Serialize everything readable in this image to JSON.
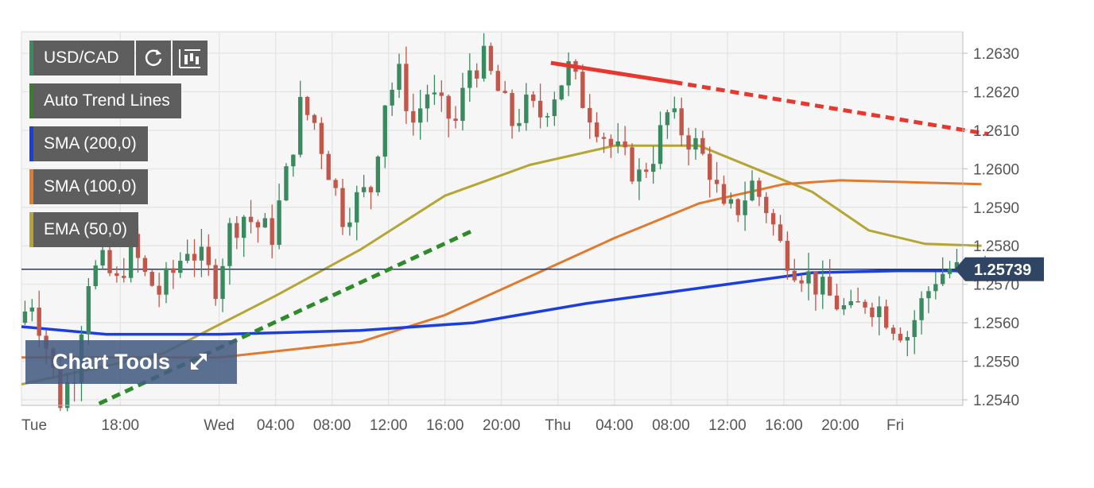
{
  "legend": {
    "symbol": "USD/CAD",
    "items": [
      {
        "label": "Auto Trend Lines",
        "color": "#3a7d2c"
      },
      {
        "label": "SMA (200,0)",
        "color": "#1a3ee0"
      },
      {
        "label": "SMA (100,0)",
        "color": "#e07a2e"
      },
      {
        "label": "EMA (50,0)",
        "color": "#b5a535"
      }
    ],
    "symbol_color": "#3a8a5f"
  },
  "tools": {
    "refresh_icon": "refresh-icon",
    "candles_icon": "candlestick-icon",
    "chart_tools_label": "Chart Tools",
    "expand_icon": "expand-icon"
  },
  "chart_data": {
    "type": "candlestick",
    "x_labels": [
      "Tue",
      "18:00",
      "Wed",
      "04:00",
      "08:00",
      "12:00",
      "16:00",
      "20:00",
      "Thu",
      "04:00",
      "08:00",
      "12:00",
      "16:00",
      "20:00",
      "Fri"
    ],
    "y_ticks": [
      "1.2540",
      "1.2550",
      "1.2560",
      "1.2570",
      "1.2580",
      "1.2590",
      "1.2600",
      "1.2610",
      "1.2620",
      "1.2630"
    ],
    "ylim": [
      1.2538,
      1.2636
    ],
    "x_range_hours": [
      0,
      80
    ],
    "x_label_hours": [
      0,
      7,
      14,
      18,
      22,
      26,
      30,
      34,
      38,
      42,
      46,
      50,
      54,
      58,
      62
    ],
    "last_price": "1.25739",
    "last_price_value": 1.25739,
    "colors": {
      "up": "#3a8a5f",
      "down": "#c0574a",
      "sma200": "#1a3ee0",
      "sma100": "#e07a2e",
      "ema50": "#b5a535",
      "trend_up": "#2f8a2a",
      "trend_down": "#e8372e",
      "price_line": "#2b3b5a",
      "price_flag": "#2f4563"
    },
    "anchors": [
      [
        0,
        1.256
      ],
      [
        1,
        1.2566
      ],
      [
        2,
        1.2554
      ],
      [
        3,
        1.254
      ],
      [
        4,
        1.2548
      ],
      [
        5,
        1.2572
      ],
      [
        6,
        1.2575
      ],
      [
        7,
        1.257
      ],
      [
        8,
        1.258
      ],
      [
        9,
        1.2572
      ],
      [
        10,
        1.2568
      ],
      [
        11,
        1.2573
      ],
      [
        12,
        1.258
      ],
      [
        13,
        1.2576
      ],
      [
        14,
        1.257
      ],
      [
        15,
        1.2584
      ],
      [
        16,
        1.2588
      ],
      [
        17,
        1.2585
      ],
      [
        18,
        1.2583
      ],
      [
        19,
        1.2598
      ],
      [
        20,
        1.2616
      ],
      [
        21,
        1.2612
      ],
      [
        22,
        1.26
      ],
      [
        23,
        1.2588
      ],
      [
        24,
        1.2592
      ],
      [
        25,
        1.2595
      ],
      [
        26,
        1.2618
      ],
      [
        27,
        1.2624
      ],
      [
        28,
        1.2612
      ],
      [
        29,
        1.262
      ],
      [
        30,
        1.2615
      ],
      [
        31,
        1.2612
      ],
      [
        32,
        1.2626
      ],
      [
        33,
        1.2628
      ],
      [
        34,
        1.262
      ],
      [
        35,
        1.2612
      ],
      [
        36,
        1.2616
      ],
      [
        37,
        1.2614
      ],
      [
        38,
        1.262
      ],
      [
        39,
        1.2626
      ],
      [
        40,
        1.2618
      ],
      [
        41,
        1.2612
      ],
      [
        42,
        1.2606
      ],
      [
        43,
        1.2602
      ],
      [
        44,
        1.2598
      ],
      [
        45,
        1.2604
      ],
      [
        46,
        1.2614
      ],
      [
        47,
        1.261
      ],
      [
        48,
        1.2606
      ],
      [
        49,
        1.26
      ],
      [
        50,
        1.2588
      ],
      [
        51,
        1.259
      ],
      [
        52,
        1.2596
      ],
      [
        53,
        1.259
      ],
      [
        54,
        1.258
      ],
      [
        55,
        1.2575
      ],
      [
        56,
        1.2572
      ],
      [
        57,
        1.2568
      ],
      [
        58,
        1.2565
      ],
      [
        59,
        1.2562
      ],
      [
        60,
        1.2566
      ],
      [
        61,
        1.2564
      ],
      [
        62,
        1.256
      ],
      [
        63,
        1.2557
      ],
      [
        64,
        1.2565
      ],
      [
        65,
        1.2572
      ],
      [
        66,
        1.2574
      ],
      [
        67,
        1.2573
      ],
      [
        68,
        1.2574
      ]
    ],
    "candle_step_hours": 0.5,
    "noise_seed": 7,
    "sma200": [
      [
        0,
        1.2559
      ],
      [
        6,
        1.2557
      ],
      [
        14,
        1.2557
      ],
      [
        24,
        1.2558
      ],
      [
        32,
        1.256
      ],
      [
        40,
        1.2565
      ],
      [
        48,
        1.2569
      ],
      [
        56,
        1.2573
      ],
      [
        62,
        1.25735
      ],
      [
        68,
        1.25735
      ]
    ],
    "sma100": [
      [
        0,
        1.2551
      ],
      [
        14,
        1.2551
      ],
      [
        24,
        1.2555
      ],
      [
        30,
        1.2562
      ],
      [
        36,
        1.2572
      ],
      [
        42,
        1.2582
      ],
      [
        48,
        1.2591
      ],
      [
        54,
        1.2596
      ],
      [
        58,
        1.2597
      ],
      [
        68,
        1.2596
      ]
    ],
    "ema50": [
      [
        0,
        1.2544
      ],
      [
        10,
        1.2552
      ],
      [
        18,
        1.2567
      ],
      [
        24,
        1.2579
      ],
      [
        30,
        1.2593
      ],
      [
        36,
        1.2601
      ],
      [
        42,
        1.2606
      ],
      [
        48,
        1.2606
      ],
      [
        52,
        1.26
      ],
      [
        56,
        1.2594
      ],
      [
        60,
        1.2584
      ],
      [
        64,
        1.25805
      ],
      [
        68,
        1.258
      ]
    ],
    "trend_up_line": {
      "from": [
        5.5,
        1.2539
      ],
      "to": [
        32,
        1.2584
      ]
    },
    "trend_down_solid": {
      "from": [
        37.5,
        1.26275
      ],
      "to": [
        46.2,
        1.26225
      ]
    },
    "trend_down_dashed": {
      "from": [
        46.2,
        1.26225
      ],
      "to": [
        68.5,
        1.2609
      ]
    }
  }
}
